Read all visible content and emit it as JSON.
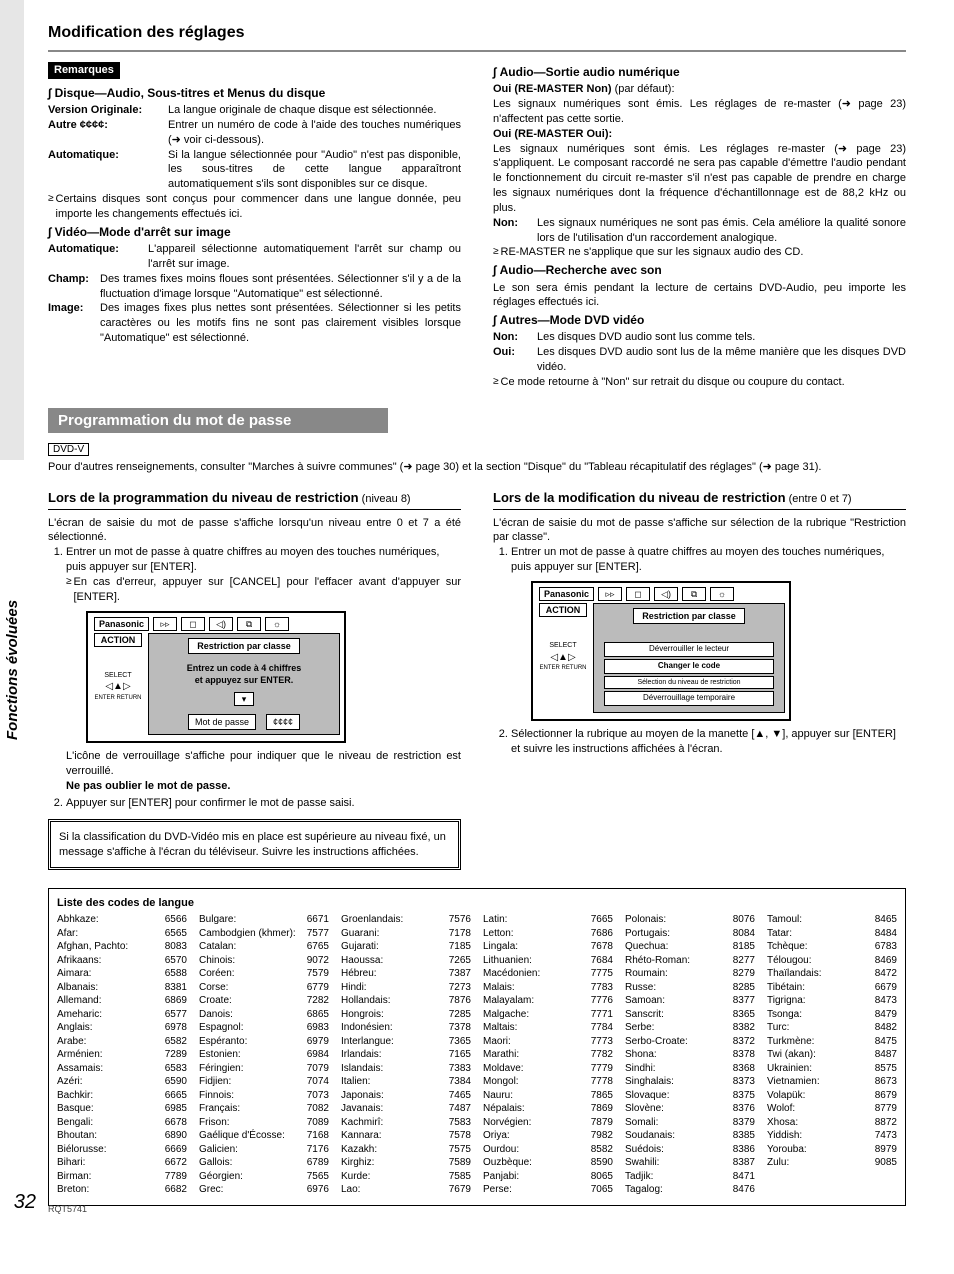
{
  "side_tab": "Fonctions évoluées",
  "page_number": "32",
  "footer_code": "RQT5741",
  "page_title": "Modification des réglages",
  "left": {
    "remarks_badge": "Remarques",
    "h_disc": "Disque—Audio, Sous-titres et Menus du disque",
    "disc": {
      "vo_k": "Version Originale:",
      "vo_v": "La langue originale de chaque disque est sélectionnée.",
      "autre_k": "Autre ¢¢¢¢:",
      "autre_v": "Entrer un numéro de code à l'aide des touches numériques (➜ voir ci-dessous).",
      "auto_k": "Automatique:",
      "auto_v": "Si la langue sélectionnée pour \"Audio\" n'est pas disponible, les sous-titres de cette langue apparaîtront automatiquement s'ils sont disponibles sur ce disque."
    },
    "disc_note": "Certains disques sont conçus pour commencer dans une langue donnée, peu importe les changements effectués ici.",
    "h_video": "Vidéo—Mode d'arrêt sur image",
    "video": {
      "auto_k": "Automatique:",
      "auto_v": "L'appareil sélectionne automatiquement l'arrêt sur champ ou l'arrêt sur image.",
      "champ_k": "Champ:",
      "champ_v": "Des trames fixes moins floues sont présentées. Sélectionner s'il y a de la fluctuation d'image lorsque \"Automatique\" est sélectionné.",
      "image_k": "Image:",
      "image_v": "Des images fixes plus nettes sont présentées. Sélectionner si les petits caractères ou les motifs fins ne sont pas clairement visibles lorsque \"Automatique\" est sélectionné."
    }
  },
  "right": {
    "h_audio_out": "Audio—Sortie audio numérique",
    "audio_out": {
      "non_h": "Oui (RE-MASTER Non) (par défaut):",
      "non_h_pre": "Oui (RE-MASTER Non)",
      "non_h_suf": " (par défaut):",
      "non_v": "Les signaux numériques sont émis. Les réglages de re-master (➜ page 23) n'affectent pas cette sortie.",
      "oui_h": "Oui (RE-MASTER Oui):",
      "oui_v": "Les signaux numériques sont émis. Les réglages re-master (➜ page 23) s'appliquent. Le composant raccordé ne sera pas capable d'émettre l'audio pendant le fonctionnement du circuit re-master s'il n'est pas capable de prendre en charge les signaux numériques dont la fréquence d'échantillonnage est de 88,2 kHz ou plus.",
      "nonk": "Non:",
      "nonv": "Les signaux numériques ne sont pas émis. Cela améliore la qualité sonore lors de l'utilisation d'un raccordement analogique.",
      "note": "RE-MASTER ne s'applique que sur les signaux audio des CD."
    },
    "h_audio_r": "Audio—Recherche avec son",
    "audio_r": "Le son sera émis pendant la lecture de certains DVD-Audio, peu importe les réglages effectués ici.",
    "h_autres": "Autres—Mode DVD vidéo",
    "autres": {
      "non_k": "Non:",
      "non_v": "Les disques DVD audio sont lus comme tels.",
      "oui_k": "Oui:",
      "oui_v": "Les disques DVD audio sont lus de la même manière que les disques DVD vidéo.",
      "note": "Ce mode retourne à \"Non\" sur retrait du disque ou coupure du contact."
    }
  },
  "band_title": "Programmation du mot de passe",
  "chip": "DVD-V",
  "intro": "Pour d'autres renseignements, consulter \"Marches à suivre communes\" (➜ page 30) et la section \"Disque\" du \"Tableau récapitulatif des réglages\" (➜ page 31).",
  "prog": {
    "h": "Lors de la programmation du niveau de restriction",
    "h_lt": " (niveau 8)",
    "p1": "L'écran de saisie du mot de passe s'affiche lorsqu'un niveau entre 0 et 7 a été sélectionné.",
    "s1": "Entrer un mot de passe à quatre chiffres au moyen des touches numériques, puis appuyer sur [ENTER].",
    "s1b": "En cas d'erreur, appuyer sur [CANCEL] pour l'effacer avant d'appuyer sur [ENTER].",
    "osd": {
      "brand": "Panasonic",
      "action": "ACTION",
      "select": "SELECT",
      "enter": "ENTER  RETURN",
      "hdr": "Restriction par classe",
      "l1": "Entrez un code à 4 chiffres",
      "l2": "et appuyez sur ENTER.",
      "mdp_k": "Mot de passe",
      "mdp_v": "¢¢¢¢"
    },
    "p2": "L'icône de verrouillage s'affiche pour indiquer que le niveau de restriction est verrouillé.",
    "p3": "Ne pas oublier le mot de passe.",
    "s2": "Appuyer sur [ENTER] pour confirmer le mot de passe saisi.",
    "box": "Si la classification du DVD-Vidéo mis en place est supérieure au niveau fixé, un message s'affiche à l'écran du téléviseur. Suivre les instructions affichées."
  },
  "mod": {
    "h": "Lors de la modification du niveau de restriction",
    "h_lt": " (entre 0 et 7)",
    "p1": "L'écran de saisie du mot de passe s'affiche sur sélection de la rubrique \"Restriction par classe\".",
    "s1": "Entrer un mot de passe à quatre chiffres au moyen des touches numériques, puis appuyer sur [ENTER].",
    "osd": {
      "brand": "Panasonic",
      "action": "ACTION",
      "select": "SELECT",
      "enter": "ENTER  RETURN",
      "hdr": "Restriction par classe",
      "l1": "Déverrouiller le lecteur",
      "l2": "Changer le code",
      "l3": "Sélection du niveau de restriction",
      "l4": "Déverrouillage temporaire"
    },
    "s2": "Sélectionner la rubrique au moyen de la manette [▲, ▼], appuyer sur [ENTER] et suivre les instructions affichées à l'écran."
  },
  "codes": {
    "title": "Liste des codes de langue",
    "cols": [
      [
        [
          "Abhkaze:",
          "6566"
        ],
        [
          "Afar:",
          "6565"
        ],
        [
          "Afghan, Pachto:",
          "8083"
        ],
        [
          "Afrikaans:",
          "6570"
        ],
        [
          "Aimara:",
          "6588"
        ],
        [
          "Albanais:",
          "8381"
        ],
        [
          "Allemand:",
          "6869"
        ],
        [
          "Ameharic:",
          "6577"
        ],
        [
          "Anglais:",
          "6978"
        ],
        [
          "Arabe:",
          "6582"
        ],
        [
          "Arménien:",
          "7289"
        ],
        [
          "Assamais:",
          "6583"
        ],
        [
          "Azéri:",
          "6590"
        ],
        [
          "Bachkir:",
          "6665"
        ],
        [
          "Basque:",
          "6985"
        ],
        [
          "Bengali:",
          "6678"
        ],
        [
          "Bhoutan:",
          "6890"
        ],
        [
          "Biélorusse:",
          "6669"
        ],
        [
          "Bihari:",
          "6672"
        ],
        [
          "Birman:",
          "7789"
        ],
        [
          "Breton:",
          "6682"
        ]
      ],
      [
        [
          "Bulgare:",
          "6671"
        ],
        [
          "Cambodgien (khmer):",
          "7577"
        ],
        [
          "Catalan:",
          "6765"
        ],
        [
          "Chinois:",
          "9072"
        ],
        [
          "Coréen:",
          "7579"
        ],
        [
          "Corse:",
          "6779"
        ],
        [
          "Croate:",
          "7282"
        ],
        [
          "Danois:",
          "6865"
        ],
        [
          "Espagnol:",
          "6983"
        ],
        [
          "Espéranto:",
          "6979"
        ],
        [
          "Estonien:",
          "6984"
        ],
        [
          "Féringien:",
          "7079"
        ],
        [
          "Fidjien:",
          "7074"
        ],
        [
          "Finnois:",
          "7073"
        ],
        [
          "Français:",
          "7082"
        ],
        [
          "Frison:",
          "7089"
        ],
        [
          "Gaélique d'Écosse:",
          "7168"
        ],
        [
          "Galicien:",
          "7176"
        ],
        [
          "Gallois:",
          "6789"
        ],
        [
          "Géorgien:",
          "7565"
        ],
        [
          "Grec:",
          "6976"
        ]
      ],
      [
        [
          "Groenlandais:",
          "7576"
        ],
        [
          "Guarani:",
          "7178"
        ],
        [
          "Gujarati:",
          "7185"
        ],
        [
          "Haoussa:",
          "7265"
        ],
        [
          "Hébreu:",
          "7387"
        ],
        [
          "Hindi:",
          "7273"
        ],
        [
          "Hollandais:",
          "7876"
        ],
        [
          "Hongrois:",
          "7285"
        ],
        [
          "Indonésien:",
          "7378"
        ],
        [
          "Interlangue:",
          "7365"
        ],
        [
          "Irlandais:",
          "7165"
        ],
        [
          "Islandais:",
          "7383"
        ],
        [
          "Italien:",
          "7384"
        ],
        [
          "Japonais:",
          "7465"
        ],
        [
          "Javanais:",
          "7487"
        ],
        [
          "Kachmirî:",
          "7583"
        ],
        [
          "Kannara:",
          "7578"
        ],
        [
          "Kazakh:",
          "7575"
        ],
        [
          "Kirghiz:",
          "7589"
        ],
        [
          "Kurde:",
          "7585"
        ],
        [
          "Lao:",
          "7679"
        ]
      ],
      [
        [
          "Latin:",
          "7665"
        ],
        [
          "Letton:",
          "7686"
        ],
        [
          "Lingala:",
          "7678"
        ],
        [
          "Lithuanien:",
          "7684"
        ],
        [
          "Macédonien:",
          "7775"
        ],
        [
          "Malais:",
          "7783"
        ],
        [
          "Malayalam:",
          "7776"
        ],
        [
          "Malgache:",
          "7771"
        ],
        [
          "Maltais:",
          "7784"
        ],
        [
          "Maori:",
          "7773"
        ],
        [
          "Marathi:",
          "7782"
        ],
        [
          "Moldave:",
          "7779"
        ],
        [
          "Mongol:",
          "7778"
        ],
        [
          "Nauru:",
          "7865"
        ],
        [
          "Népalais:",
          "7869"
        ],
        [
          "Norvégien:",
          "7879"
        ],
        [
          "Oriya:",
          "7982"
        ],
        [
          "Ourdou:",
          "8582"
        ],
        [
          "Ouzbèque:",
          "8590"
        ],
        [
          "Panjabi:",
          "8065"
        ],
        [
          "Perse:",
          "7065"
        ]
      ],
      [
        [
          "Polonais:",
          "8076"
        ],
        [
          "Portugais:",
          "8084"
        ],
        [
          "Quechua:",
          "8185"
        ],
        [
          "Rhéto-Roman:",
          "8277"
        ],
        [
          "Roumain:",
          "8279"
        ],
        [
          "Russe:",
          "8285"
        ],
        [
          "Samoan:",
          "8377"
        ],
        [
          "Sanscrit:",
          "8365"
        ],
        [
          "Serbe:",
          "8382"
        ],
        [
          "Serbo-Croate:",
          "8372"
        ],
        [
          "Shona:",
          "8378"
        ],
        [
          "Sindhi:",
          "8368"
        ],
        [
          "Singhalais:",
          "8373"
        ],
        [
          "Slovaque:",
          "8375"
        ],
        [
          "Slovène:",
          "8376"
        ],
        [
          "Somali:",
          "8379"
        ],
        [
          "Soudanais:",
          "8385"
        ],
        [
          "Suédois:",
          "8386"
        ],
        [
          "Swahili:",
          "8387"
        ],
        [
          "Tadjik:",
          "8471"
        ],
        [
          "Tagalog:",
          "8476"
        ]
      ],
      [
        [
          "Tamoul:",
          "8465"
        ],
        [
          "Tatar:",
          "8484"
        ],
        [
          "Tchèque:",
          "6783"
        ],
        [
          "Télougou:",
          "8469"
        ],
        [
          "Thaïlandais:",
          "8472"
        ],
        [
          "Tibétain:",
          "6679"
        ],
        [
          "Tigrigna:",
          "8473"
        ],
        [
          "Tsonga:",
          "8479"
        ],
        [
          "Turc:",
          "8482"
        ],
        [
          "Turkmène:",
          "8475"
        ],
        [
          "Twi (akan):",
          "8487"
        ],
        [
          "Ukrainien:",
          "8575"
        ],
        [
          "Vietnamien:",
          "8673"
        ],
        [
          "Volapük:",
          "8679"
        ],
        [
          "Wolof:",
          "8779"
        ],
        [
          "Xhosa:",
          "8872"
        ],
        [
          "Yiddish:",
          "7473"
        ],
        [
          "Yorouba:",
          "8979"
        ],
        [
          "Zulu:",
          "9085"
        ]
      ]
    ]
  }
}
